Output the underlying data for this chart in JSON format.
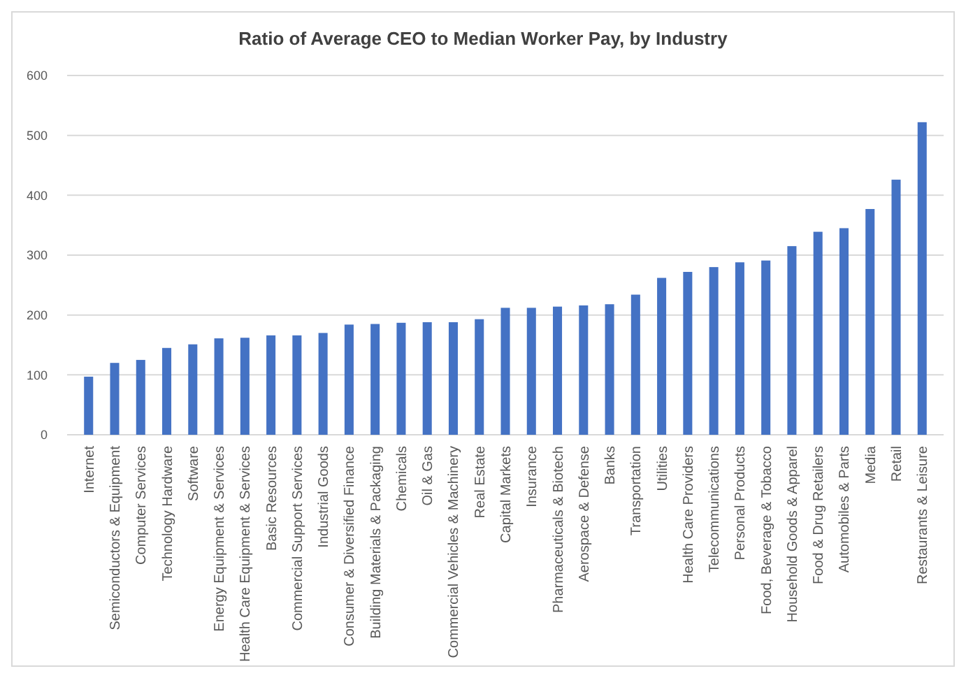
{
  "chart_data": {
    "type": "bar",
    "title": "Ratio of Average CEO to Median Worker Pay, by Industry",
    "categories": [
      "Internet",
      "Semiconductors & Equipment",
      "Computer Services",
      "Technology Hardware",
      "Software",
      "Energy Equipment & Services",
      "Health Care Equipment & Services",
      "Basic Resources",
      "Commercial Support Services",
      "Industrial Goods",
      "Consumer & Diversified Finance",
      "Building Materials & Packaging",
      "Chemicals",
      "Oil & Gas",
      "Commercial Vehicles & Machinery",
      "Real Estate",
      "Capital Markets",
      "Insurance",
      "Pharmaceuticals & Biotech",
      "Aerospace & Defense",
      "Banks",
      "Transportation",
      "Utilities",
      "Health Care Providers",
      "Telecommunications",
      "Personal Products",
      "Food, Beverage & Tobacco",
      "Household Goods & Apparel",
      "Food & Drug Retailers",
      "Automobiles & Parts",
      "Media",
      "Retail",
      "Restaurants & Leisure"
    ],
    "values": [
      97,
      120,
      125,
      145,
      151,
      161,
      162,
      166,
      166,
      170,
      184,
      185,
      187,
      188,
      188,
      193,
      212,
      212,
      214,
      216,
      218,
      234,
      262,
      272,
      280,
      288,
      291,
      315,
      339,
      345,
      377,
      426,
      522
    ],
    "color": "#4472c4",
    "ylim": [
      0,
      600
    ],
    "yticks": [
      0,
      100,
      200,
      300,
      400,
      500,
      600
    ],
    "grid": "y"
  }
}
